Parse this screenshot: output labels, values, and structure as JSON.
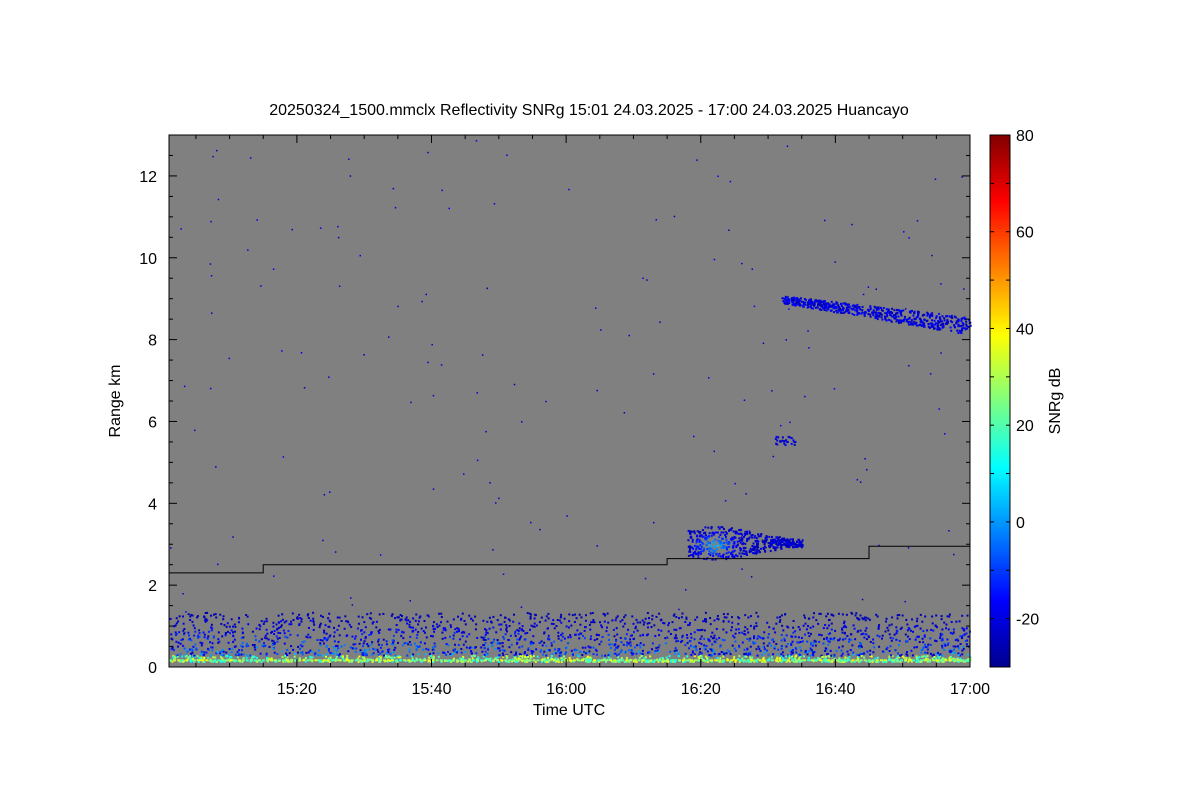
{
  "chart_data": {
    "type": "heatmap",
    "title": "20250324_1500.mmclx Reflectivity SNRg   15:01 24.03.2025 - 17:00 24.03.2025 Huancayo",
    "xlabel": "Time UTC",
    "ylabel": "Range km",
    "x_ticks": [
      "15:20",
      "15:40",
      "16:00",
      "16:20",
      "16:40",
      "17:00"
    ],
    "x_tick_minutes": [
      20,
      40,
      60,
      80,
      100,
      120
    ],
    "xlim_minutes": [
      1,
      120
    ],
    "y_ticks": [
      0,
      2,
      4,
      6,
      8,
      10,
      12
    ],
    "ylim": [
      0,
      13
    ],
    "colorbar": {
      "label": "SNRg dB",
      "ticks": [
        -20,
        0,
        20,
        40,
        60,
        80
      ],
      "range": [
        -30,
        80
      ],
      "colormap": "jet"
    },
    "background_color": "#808080",
    "line_series": {
      "name": "",
      "color": "#000000",
      "points": [
        [
          1,
          2.3
        ],
        [
          15,
          2.3
        ],
        [
          15,
          2.5
        ],
        [
          75,
          2.5
        ],
        [
          75,
          2.65
        ],
        [
          105,
          2.65
        ],
        [
          105,
          2.95
        ],
        [
          120,
          2.95
        ]
      ]
    },
    "echo_regions": [
      {
        "name": "low-level clutter",
        "x_range": [
          1,
          120
        ],
        "y_range": [
          0.1,
          1.3
        ],
        "snr_range": [
          -25,
          40
        ]
      },
      {
        "name": "mid-level cloud",
        "x_range": [
          78,
          95
        ],
        "y_range": [
          2.6,
          3.5
        ],
        "snr_range": [
          -25,
          5
        ]
      },
      {
        "name": "upper cloud",
        "x_range": [
          92,
          120
        ],
        "y_range": [
          8.2,
          9.0
        ],
        "snr_range": [
          -25,
          -10
        ]
      },
      {
        "name": "small echo",
        "x_range": [
          91,
          94
        ],
        "y_range": [
          5.4,
          5.6
        ],
        "snr_range": [
          -25,
          -15
        ]
      }
    ]
  }
}
